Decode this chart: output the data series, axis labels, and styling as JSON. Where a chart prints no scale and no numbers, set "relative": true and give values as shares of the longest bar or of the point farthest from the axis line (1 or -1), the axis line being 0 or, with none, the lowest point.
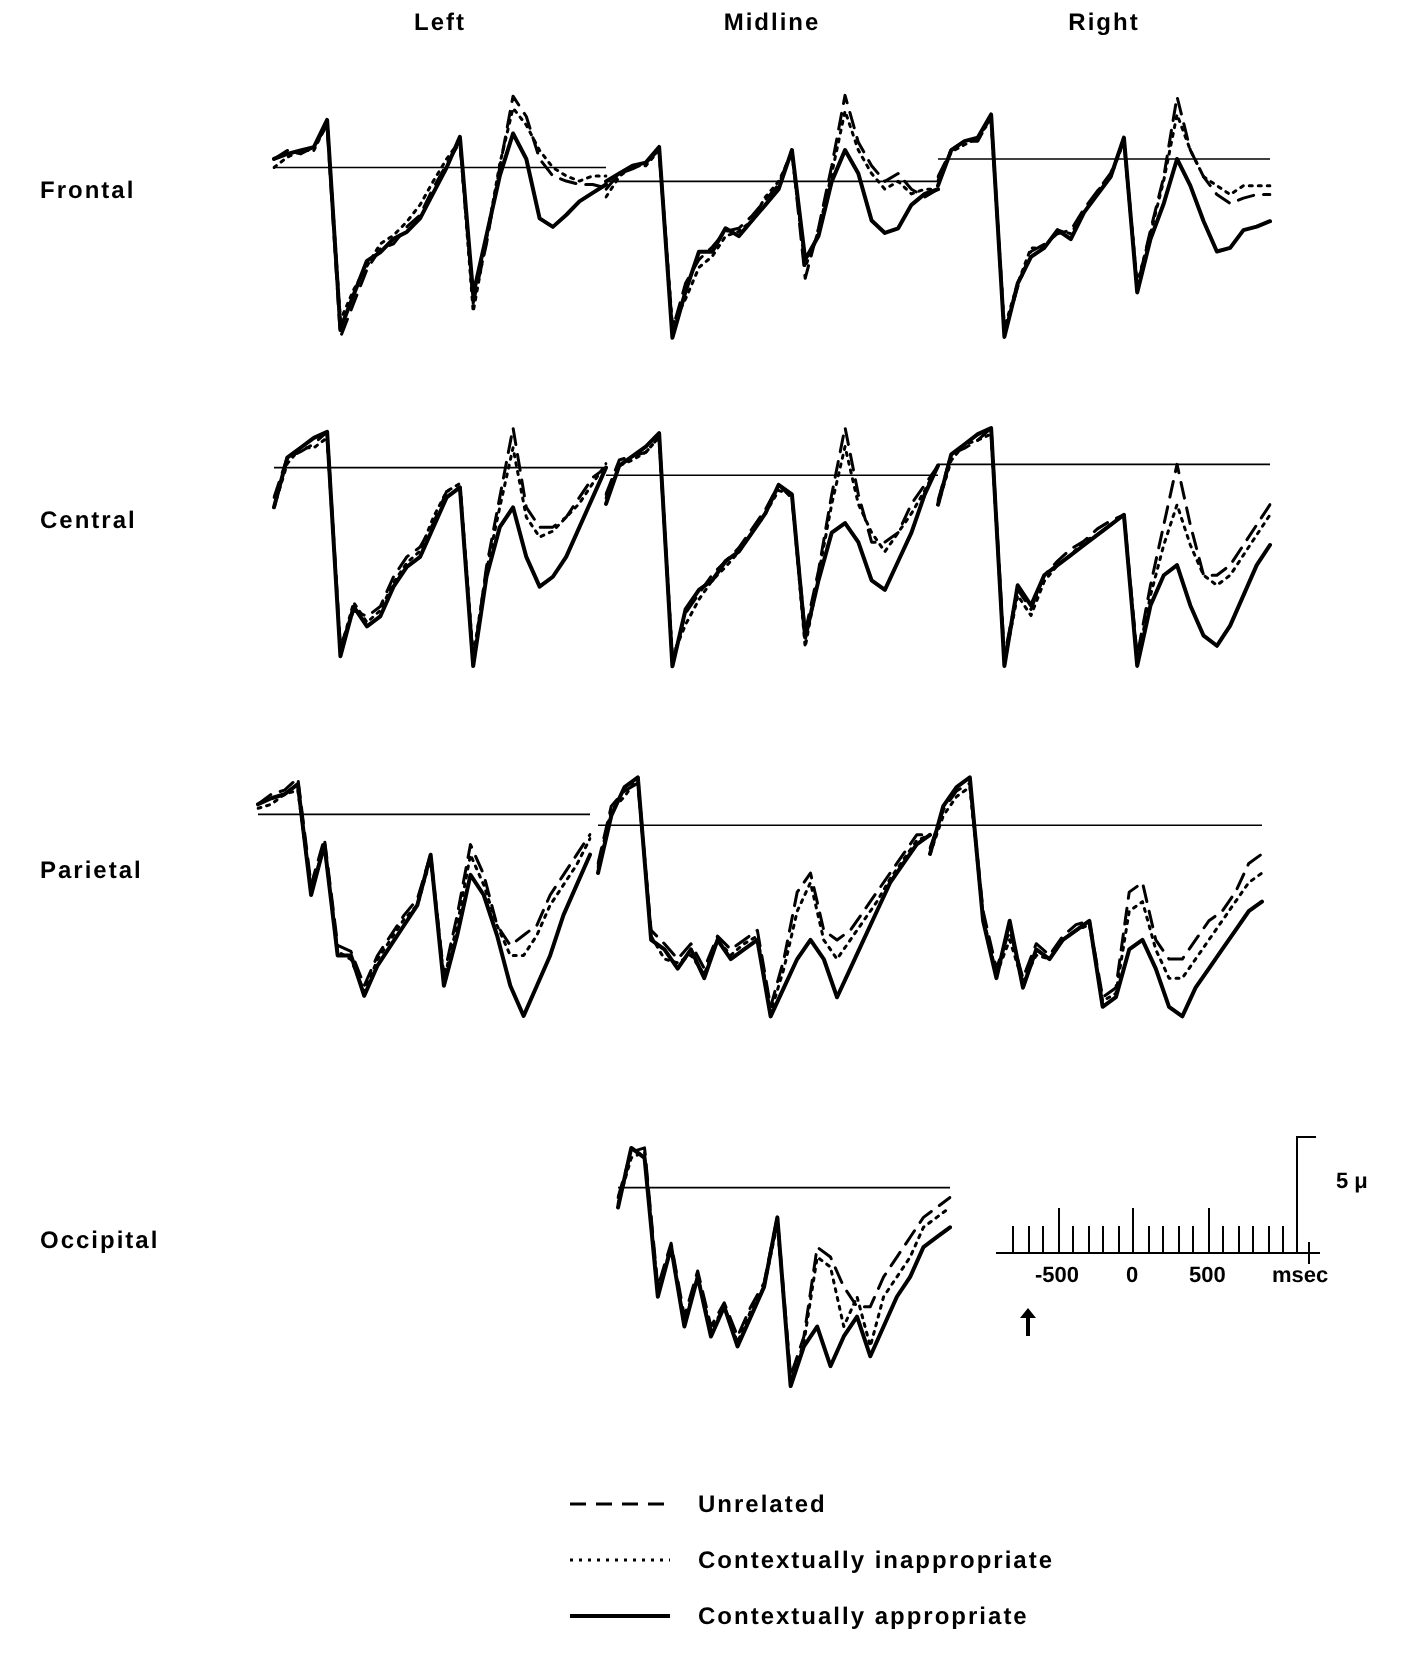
{
  "chart_data": [
    {
      "type": "line",
      "title": "Left",
      "ylabel": "Frontal",
      "relative": true,
      "marker": "none",
      "categories": [
        null,
        null,
        null,
        null,
        null,
        null,
        null,
        null,
        null,
        null,
        null,
        null,
        null,
        null,
        null,
        null,
        null,
        null,
        null,
        null,
        null,
        null,
        null,
        null,
        null,
        null
      ],
      "series": [
        {
          "color": "#000000",
          "line_style": "dashed",
          "values": [
            0.05,
            0.1,
            0.08,
            0.12,
            0.25,
            -1.0,
            -0.8,
            -0.6,
            -0.48,
            -0.45,
            -0.35,
            -0.28,
            -0.12,
            0.02,
            0.15,
            -0.8,
            -0.45,
            0.0,
            0.42,
            0.3,
            0.05,
            -0.05,
            -0.08,
            -0.1,
            -0.1,
            -0.12
          ]
        },
        {
          "color": "#000000",
          "line_style": "dotted",
          "values": [
            0.0,
            0.06,
            0.1,
            0.1,
            0.26,
            -0.9,
            -0.72,
            -0.58,
            -0.45,
            -0.4,
            -0.32,
            -0.22,
            -0.08,
            0.05,
            0.16,
            -0.85,
            -0.42,
            0.02,
            0.35,
            0.25,
            0.1,
            0.0,
            -0.05,
            -0.08,
            -0.05,
            -0.05
          ]
        },
        {
          "color": "#000000",
          "line_style": "solid",
          "values": [
            0.05,
            0.08,
            0.1,
            0.12,
            0.28,
            -0.95,
            -0.75,
            -0.55,
            -0.5,
            -0.42,
            -0.38,
            -0.3,
            -0.15,
            0.0,
            0.18,
            -0.75,
            -0.4,
            -0.05,
            0.2,
            0.05,
            -0.3,
            -0.35,
            -0.28,
            -0.2,
            -0.15,
            -0.1
          ]
        }
      ]
    },
    {
      "type": "line",
      "title": "Midline",
      "relative": true,
      "marker": "none",
      "categories": [
        null,
        null,
        null,
        null,
        null,
        null,
        null,
        null,
        null,
        null,
        null,
        null,
        null,
        null,
        null,
        null,
        null,
        null,
        null,
        null,
        null,
        null,
        null,
        null,
        null,
        null
      ],
      "series": [
        {
          "color": "#000000",
          "line_style": "dashed",
          "values": [
            -0.05,
            0.05,
            0.08,
            0.12,
            0.2,
            -0.95,
            -0.65,
            -0.5,
            -0.42,
            -0.32,
            -0.3,
            -0.22,
            -0.12,
            -0.02,
            0.2,
            -0.62,
            -0.3,
            0.1,
            0.55,
            0.25,
            0.1,
            0.0,
            0.05,
            -0.05,
            -0.1,
            -0.05
          ]
        },
        {
          "color": "#000000",
          "line_style": "dotted",
          "values": [
            -0.1,
            0.03,
            0.1,
            0.1,
            0.2,
            -0.92,
            -0.75,
            -0.55,
            -0.48,
            -0.35,
            -0.32,
            -0.25,
            -0.1,
            0.0,
            0.18,
            -0.55,
            -0.32,
            0.05,
            0.45,
            0.2,
            0.05,
            -0.05,
            0.0,
            -0.08,
            -0.05,
            -0.05
          ]
        },
        {
          "color": "#000000",
          "line_style": "solid",
          "values": [
            0.0,
            0.05,
            0.1,
            0.12,
            0.22,
            -1.0,
            -0.7,
            -0.45,
            -0.45,
            -0.3,
            -0.35,
            -0.25,
            -0.15,
            -0.05,
            0.2,
            -0.5,
            -0.35,
            0.0,
            0.2,
            0.05,
            -0.25,
            -0.33,
            -0.3,
            -0.15,
            -0.08,
            -0.05
          ]
        }
      ]
    },
    {
      "type": "line",
      "title": "Right",
      "relative": true,
      "marker": "none",
      "categories": [
        null,
        null,
        null,
        null,
        null,
        null,
        null,
        null,
        null,
        null,
        null,
        null,
        null,
        null,
        null,
        null,
        null,
        null,
        null,
        null,
        null,
        null,
        null,
        null,
        null,
        null
      ],
      "series": [
        {
          "color": "#000000",
          "line_style": "dashed",
          "values": [
            -0.1,
            0.05,
            0.1,
            0.1,
            0.24,
            -0.98,
            -0.72,
            -0.52,
            -0.48,
            -0.42,
            -0.4,
            -0.28,
            -0.18,
            -0.08,
            0.1,
            -0.72,
            -0.4,
            -0.1,
            0.35,
            0.05,
            -0.1,
            -0.2,
            -0.25,
            -0.22,
            -0.2,
            -0.2
          ]
        },
        {
          "color": "#000000",
          "line_style": "dotted",
          "values": [
            -0.12,
            0.04,
            0.08,
            0.12,
            0.22,
            -0.95,
            -0.7,
            -0.5,
            -0.5,
            -0.4,
            -0.42,
            -0.3,
            -0.18,
            -0.1,
            0.1,
            -0.7,
            -0.42,
            -0.12,
            0.25,
            0.05,
            -0.1,
            -0.15,
            -0.2,
            -0.15,
            -0.15,
            -0.15
          ]
        },
        {
          "color": "#000000",
          "line_style": "solid",
          "values": [
            -0.15,
            0.05,
            0.1,
            0.12,
            0.25,
            -1.0,
            -0.7,
            -0.55,
            -0.5,
            -0.4,
            -0.45,
            -0.3,
            -0.2,
            -0.1,
            0.12,
            -0.75,
            -0.45,
            -0.25,
            0.0,
            -0.15,
            -0.35,
            -0.52,
            -0.5,
            -0.4,
            -0.38,
            -0.35
          ]
        }
      ]
    },
    {
      "type": "line",
      "ylabel": "Central",
      "relative": true,
      "marker": "none",
      "categories": [
        null,
        null,
        null,
        null,
        null,
        null,
        null,
        null,
        null,
        null,
        null,
        null,
        null,
        null,
        null,
        null,
        null,
        null,
        null,
        null,
        null,
        null,
        null,
        null,
        null,
        null
      ],
      "series": [
        {
          "color": "#000000",
          "line_style": "dashed",
          "values": [
            -0.15,
            0.05,
            0.08,
            0.12,
            0.18,
            -0.9,
            -0.72,
            -0.75,
            -0.7,
            -0.55,
            -0.45,
            -0.4,
            -0.28,
            -0.12,
            -0.1,
            -0.98,
            -0.5,
            -0.15,
            0.2,
            -0.2,
            -0.3,
            -0.3,
            -0.25,
            -0.15,
            -0.05,
            0.0
          ]
        },
        {
          "color": "#000000",
          "line_style": "dotted",
          "values": [
            -0.2,
            0.02,
            0.1,
            0.1,
            0.15,
            -0.92,
            -0.68,
            -0.78,
            -0.72,
            -0.58,
            -0.48,
            -0.42,
            -0.25,
            -0.12,
            -0.08,
            -0.95,
            -0.52,
            -0.2,
            0.1,
            -0.25,
            -0.35,
            -0.32,
            -0.25,
            -0.18,
            -0.08,
            0.02
          ]
        },
        {
          "color": "#000000",
          "line_style": "solid",
          "values": [
            -0.2,
            0.05,
            0.1,
            0.15,
            0.18,
            -0.95,
            -0.7,
            -0.8,
            -0.75,
            -0.6,
            -0.5,
            -0.45,
            -0.3,
            -0.15,
            -0.1,
            -1.0,
            -0.55,
            -0.3,
            -0.2,
            -0.45,
            -0.6,
            -0.55,
            -0.45,
            -0.3,
            -0.15,
            0.0
          ]
        }
      ]
    },
    {
      "type": "line",
      "relative": true,
      "marker": "none",
      "categories": [
        null,
        null,
        null,
        null,
        null,
        null,
        null,
        null,
        null,
        null,
        null,
        null,
        null,
        null,
        null,
        null,
        null,
        null,
        null,
        null,
        null,
        null,
        null,
        null,
        null,
        null
      ],
      "series": [
        {
          "color": "#000000",
          "line_style": "dashed",
          "values": [
            -0.1,
            0.08,
            0.1,
            0.12,
            0.2,
            -0.98,
            -0.72,
            -0.62,
            -0.52,
            -0.45,
            -0.38,
            -0.28,
            -0.18,
            -0.05,
            -0.12,
            -0.82,
            -0.5,
            -0.1,
            0.25,
            -0.1,
            -0.35,
            -0.35,
            -0.3,
            -0.15,
            -0.05,
            0.05
          ]
        },
        {
          "color": "#000000",
          "line_style": "dotted",
          "values": [
            -0.12,
            0.05,
            0.08,
            0.12,
            0.2,
            -0.95,
            -0.78,
            -0.65,
            -0.55,
            -0.48,
            -0.4,
            -0.3,
            -0.2,
            -0.08,
            -0.1,
            -0.9,
            -0.52,
            -0.15,
            0.15,
            -0.15,
            -0.3,
            -0.4,
            -0.3,
            -0.2,
            -0.08,
            0.05
          ]
        },
        {
          "color": "#000000",
          "line_style": "solid",
          "values": [
            -0.15,
            0.05,
            0.1,
            0.15,
            0.22,
            -1.0,
            -0.7,
            -0.6,
            -0.55,
            -0.45,
            -0.4,
            -0.3,
            -0.2,
            -0.05,
            -0.1,
            -0.85,
            -0.55,
            -0.3,
            -0.25,
            -0.35,
            -0.55,
            -0.6,
            -0.45,
            -0.3,
            -0.1,
            0.05
          ]
        }
      ]
    },
    {
      "type": "line",
      "relative": true,
      "marker": "none",
      "categories": [
        null,
        null,
        null,
        null,
        null,
        null,
        null,
        null,
        null,
        null,
        null,
        null,
        null,
        null,
        null,
        null,
        null,
        null,
        null,
        null,
        null,
        null,
        null,
        null,
        null,
        null
      ],
      "series": [
        {
          "color": "#000000",
          "line_style": "dashed",
          "values": [
            -0.18,
            0.05,
            0.08,
            0.12,
            0.18,
            -0.95,
            -0.62,
            -0.72,
            -0.55,
            -0.48,
            -0.42,
            -0.38,
            -0.32,
            -0.28,
            -0.25,
            -0.95,
            -0.6,
            -0.3,
            0.0,
            -0.3,
            -0.55,
            -0.55,
            -0.5,
            -0.4,
            -0.3,
            -0.2
          ]
        },
        {
          "color": "#000000",
          "line_style": "dotted",
          "values": [
            -0.2,
            0.02,
            0.1,
            0.12,
            0.15,
            -0.98,
            -0.65,
            -0.75,
            -0.58,
            -0.5,
            -0.45,
            -0.38,
            -0.35,
            -0.3,
            -0.25,
            -0.98,
            -0.65,
            -0.4,
            -0.2,
            -0.4,
            -0.55,
            -0.6,
            -0.55,
            -0.45,
            -0.35,
            -0.25
          ]
        },
        {
          "color": "#000000",
          "line_style": "solid",
          "values": [
            -0.2,
            0.05,
            0.1,
            0.15,
            0.18,
            -1.0,
            -0.6,
            -0.7,
            -0.55,
            -0.5,
            -0.45,
            -0.4,
            -0.35,
            -0.3,
            -0.25,
            -1.0,
            -0.7,
            -0.55,
            -0.5,
            -0.7,
            -0.85,
            -0.9,
            -0.8,
            -0.65,
            -0.5,
            -0.4
          ]
        }
      ]
    },
    {
      "type": "line",
      "ylabel": "Parietal",
      "relative": true,
      "marker": "none",
      "categories": [
        null,
        null,
        null,
        null,
        null,
        null,
        null,
        null,
        null,
        null,
        null,
        null,
        null,
        null,
        null,
        null,
        null,
        null,
        null,
        null,
        null,
        null,
        null,
        null,
        null,
        null
      ],
      "series": [
        {
          "color": "#000000",
          "line_style": "dashed",
          "values": [
            0.05,
            0.1,
            0.12,
            0.18,
            -0.35,
            -0.12,
            -0.65,
            -0.68,
            -0.85,
            -0.7,
            -0.6,
            -0.5,
            -0.42,
            -0.2,
            -0.8,
            -0.5,
            -0.15,
            -0.3,
            -0.55,
            -0.65,
            -0.6,
            -0.55,
            -0.4,
            -0.3,
            -0.2,
            -0.1
          ]
        },
        {
          "color": "#000000",
          "line_style": "dotted",
          "values": [
            0.03,
            0.05,
            0.1,
            0.12,
            -0.38,
            -0.15,
            -0.68,
            -0.72,
            -0.88,
            -0.72,
            -0.62,
            -0.52,
            -0.45,
            -0.22,
            -0.82,
            -0.55,
            -0.2,
            -0.35,
            -0.55,
            -0.7,
            -0.7,
            -0.6,
            -0.45,
            -0.35,
            -0.25,
            -0.12
          ]
        },
        {
          "color": "#000000",
          "line_style": "solid",
          "values": [
            0.05,
            0.08,
            0.1,
            0.15,
            -0.4,
            -0.15,
            -0.7,
            -0.7,
            -0.9,
            -0.75,
            -0.65,
            -0.55,
            -0.45,
            -0.2,
            -0.85,
            -0.6,
            -0.3,
            -0.4,
            -0.6,
            -0.85,
            -1.0,
            -0.85,
            -0.7,
            -0.5,
            -0.35,
            -0.2
          ]
        }
      ]
    },
    {
      "type": "line",
      "relative": true,
      "marker": "none",
      "categories": [
        null,
        null,
        null,
        null,
        null,
        null,
        null,
        null,
        null,
        null,
        null,
        null,
        null,
        null,
        null,
        null,
        null,
        null,
        null,
        null,
        null,
        null,
        null,
        null,
        null,
        null
      ],
      "series": [
        {
          "color": "#000000",
          "line_style": "dashed",
          "values": [
            -0.2,
            0.1,
            0.18,
            0.22,
            -0.55,
            -0.62,
            -0.7,
            -0.62,
            -0.75,
            -0.58,
            -0.65,
            -0.6,
            -0.55,
            -0.95,
            -0.7,
            -0.35,
            -0.25,
            -0.55,
            -0.6,
            -0.55,
            -0.45,
            -0.35,
            -0.25,
            -0.15,
            -0.05,
            -0.05
          ]
        },
        {
          "color": "#000000",
          "line_style": "dotted",
          "values": [
            -0.22,
            0.08,
            0.15,
            0.25,
            -0.58,
            -0.7,
            -0.72,
            -0.68,
            -0.78,
            -0.6,
            -0.68,
            -0.62,
            -0.58,
            -0.98,
            -0.75,
            -0.45,
            -0.3,
            -0.6,
            -0.7,
            -0.6,
            -0.5,
            -0.4,
            -0.28,
            -0.18,
            -0.08,
            -0.05
          ]
        },
        {
          "color": "#000000",
          "line_style": "solid",
          "values": [
            -0.25,
            0.05,
            0.2,
            0.25,
            -0.6,
            -0.65,
            -0.75,
            -0.65,
            -0.8,
            -0.6,
            -0.7,
            -0.65,
            -0.6,
            -1.0,
            -0.85,
            -0.7,
            -0.6,
            -0.7,
            -0.9,
            -0.75,
            -0.6,
            -0.45,
            -0.3,
            -0.2,
            -0.1,
            -0.05
          ]
        }
      ]
    },
    {
      "type": "line",
      "relative": true,
      "marker": "none",
      "categories": [
        null,
        null,
        null,
        null,
        null,
        null,
        null,
        null,
        null,
        null,
        null,
        null,
        null,
        null,
        null,
        null,
        null,
        null,
        null,
        null,
        null,
        null,
        null,
        null,
        null,
        null
      ],
      "series": [
        {
          "color": "#000000",
          "line_style": "dashed",
          "values": [
            -0.12,
            0.08,
            0.18,
            0.22,
            -0.45,
            -0.75,
            -0.55,
            -0.8,
            -0.62,
            -0.68,
            -0.58,
            -0.52,
            -0.5,
            -0.9,
            -0.85,
            -0.35,
            -0.3,
            -0.6,
            -0.7,
            -0.7,
            -0.6,
            -0.5,
            -0.45,
            -0.35,
            -0.2,
            -0.15
          ]
        },
        {
          "color": "#000000",
          "line_style": "dotted",
          "values": [
            -0.15,
            0.05,
            0.15,
            0.2,
            -0.48,
            -0.78,
            -0.6,
            -0.82,
            -0.68,
            -0.7,
            -0.6,
            -0.55,
            -0.52,
            -0.92,
            -0.88,
            -0.45,
            -0.4,
            -0.65,
            -0.8,
            -0.8,
            -0.7,
            -0.6,
            -0.5,
            -0.4,
            -0.3,
            -0.25
          ]
        },
        {
          "color": "#000000",
          "line_style": "solid",
          "values": [
            -0.15,
            0.1,
            0.2,
            0.25,
            -0.5,
            -0.8,
            -0.5,
            -0.85,
            -0.65,
            -0.7,
            -0.6,
            -0.55,
            -0.5,
            -0.95,
            -0.9,
            -0.65,
            -0.6,
            -0.75,
            -0.95,
            -1.0,
            -0.85,
            -0.75,
            -0.65,
            -0.55,
            -0.45,
            -0.4
          ]
        }
      ]
    },
    {
      "type": "line",
      "ylabel": "Occipital",
      "relative": true,
      "marker": "none",
      "legend": "bottom",
      "categories": [
        null,
        null,
        null,
        null,
        null,
        null,
        null,
        null,
        null,
        null,
        null,
        null,
        null,
        null,
        null,
        null,
        null,
        null,
        null,
        null,
        null,
        null,
        null,
        null,
        null,
        null
      ],
      "series": [
        {
          "name": "Unrelated",
          "color": "#000000",
          "line_style": "dashed",
          "values": [
            -0.05,
            0.18,
            0.2,
            -0.5,
            -0.28,
            -0.65,
            -0.42,
            -0.7,
            -0.58,
            -0.75,
            -0.6,
            -0.48,
            -0.15,
            -0.95,
            -0.75,
            -0.3,
            -0.35,
            -0.5,
            -0.6,
            -0.6,
            -0.45,
            -0.35,
            -0.25,
            -0.15,
            -0.1,
            -0.05
          ]
        },
        {
          "name": "Contextually inappropriate",
          "color": "#000000",
          "line_style": "dotted",
          "values": [
            -0.08,
            0.15,
            0.18,
            -0.52,
            -0.3,
            -0.68,
            -0.45,
            -0.72,
            -0.6,
            -0.78,
            -0.62,
            -0.5,
            -0.18,
            -0.98,
            -0.78,
            -0.35,
            -0.4,
            -0.7,
            -0.55,
            -0.8,
            -0.55,
            -0.45,
            -0.35,
            -0.2,
            -0.15,
            -0.1
          ]
        },
        {
          "name": "Contextually appropriate",
          "color": "#000000",
          "line_style": "solid",
          "values": [
            -0.1,
            0.2,
            0.15,
            -0.55,
            -0.3,
            -0.7,
            -0.45,
            -0.75,
            -0.6,
            -0.8,
            -0.65,
            -0.5,
            -0.15,
            -1.0,
            -0.8,
            -0.7,
            -0.9,
            -0.75,
            -0.65,
            -0.85,
            -0.7,
            -0.55,
            -0.45,
            -0.3,
            -0.25,
            -0.2
          ]
        }
      ]
    },
    {
      "type": "other",
      "annotations": [
        "-500",
        "0",
        "500",
        "msec",
        "5 μ"
      ]
    }
  ]
}
